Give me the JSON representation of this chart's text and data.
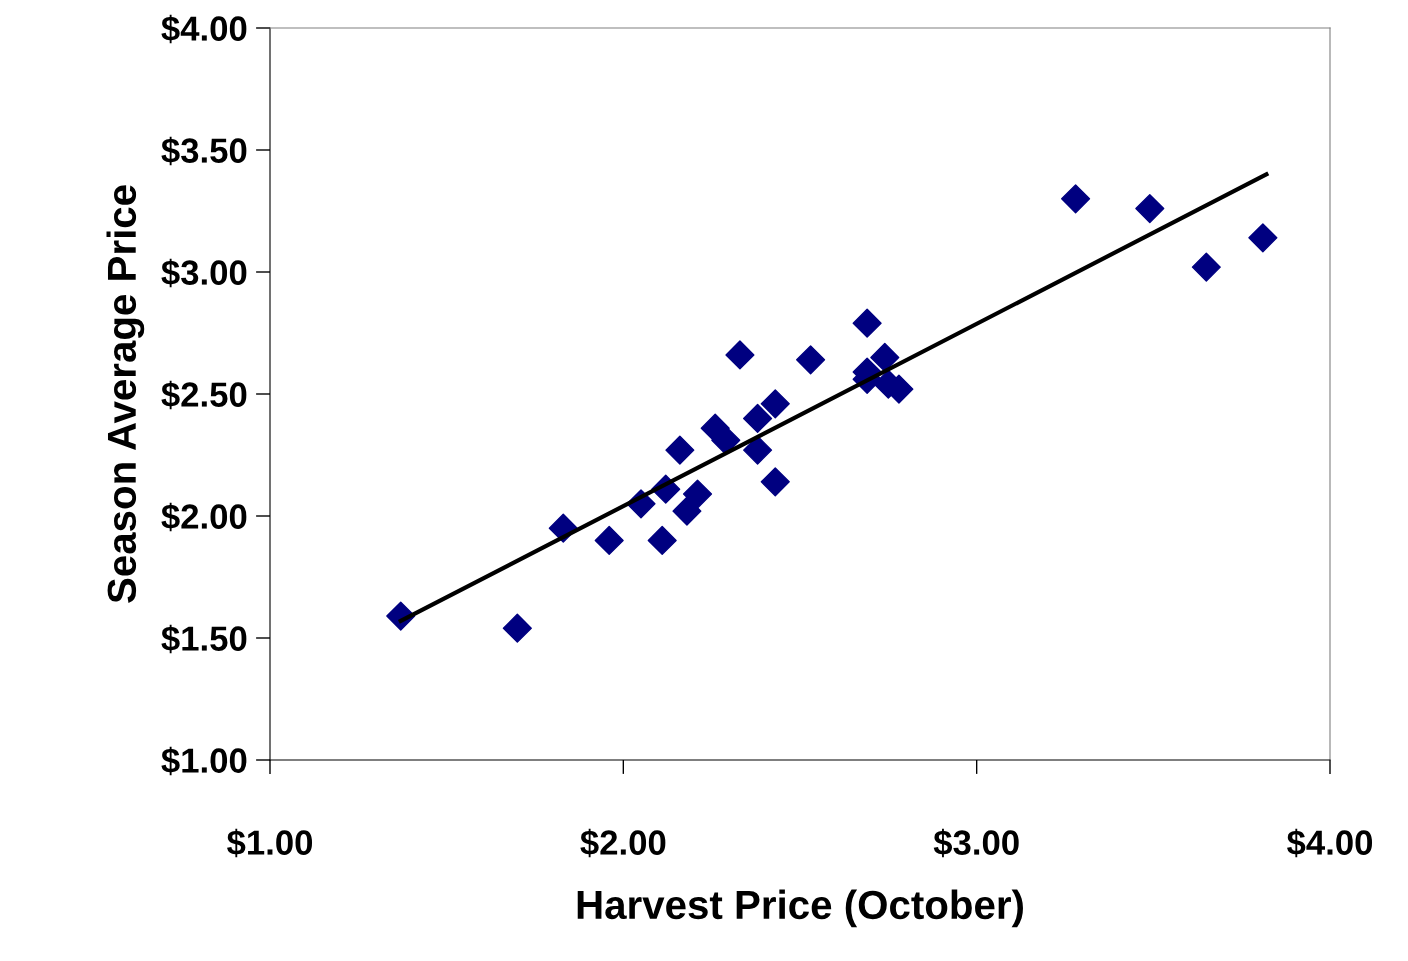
{
  "chart_data": {
    "type": "scatter",
    "xlabel": "Harvest Price (October)",
    "ylabel": "Season Average Price",
    "xlim": [
      1,
      4
    ],
    "ylim": [
      1,
      4
    ],
    "xticks": [
      {
        "value": 1,
        "label": "$1.00"
      },
      {
        "value": 2,
        "label": "$2.00"
      },
      {
        "value": 3,
        "label": "$3.00"
      },
      {
        "value": 4,
        "label": "$4.00"
      }
    ],
    "yticks": [
      {
        "value": 1,
        "label": "$1.00"
      },
      {
        "value": 1.5,
        "label": "$1.50"
      },
      {
        "value": 2,
        "label": "$2.00"
      },
      {
        "value": 2.5,
        "label": "$2.50"
      },
      {
        "value": 3,
        "label": "$3.00"
      },
      {
        "value": 3.5,
        "label": "$3.50"
      },
      {
        "value": 4,
        "label": "$4.00"
      }
    ],
    "grid": false,
    "series": [
      {
        "marker": "diamond",
        "color": "#000080",
        "x": [
          1.37,
          1.7,
          1.83,
          1.96,
          2.05,
          2.11,
          2.12,
          2.16,
          2.18,
          2.21,
          2.26,
          2.29,
          2.33,
          2.38,
          2.38,
          2.43,
          2.43,
          2.53,
          2.69,
          2.69,
          2.69,
          2.74,
          2.75,
          2.78,
          3.28,
          3.49,
          3.65,
          3.81
        ],
        "values": [
          1.59,
          1.54,
          1.95,
          1.9,
          2.05,
          1.9,
          2.11,
          2.27,
          2.02,
          2.09,
          2.36,
          2.31,
          2.66,
          2.4,
          2.27,
          2.46,
          2.14,
          2.64,
          2.79,
          2.59,
          2.56,
          2.65,
          2.54,
          2.52,
          3.3,
          3.26,
          3.02,
          3.14
        ]
      },
      {
        "type": "line",
        "marker": "none",
        "line_style": "solid",
        "color": "#000000",
        "x": [
          1.37,
          3.82
        ],
        "values": [
          1.57,
          3.4
        ]
      }
    ]
  }
}
